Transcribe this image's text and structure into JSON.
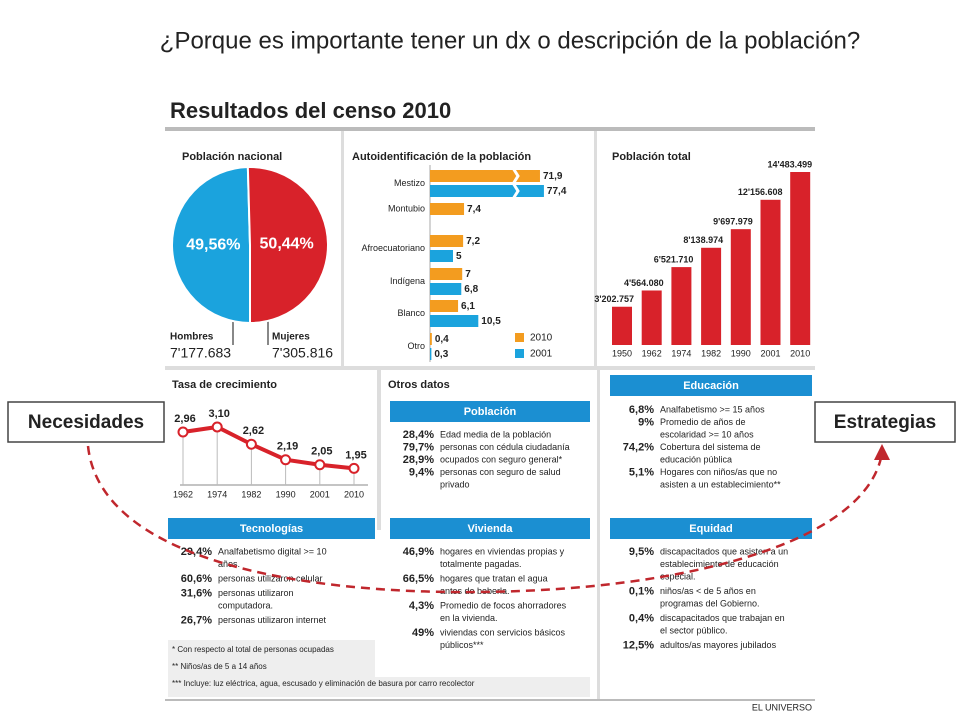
{
  "title": "¿Porque es importante tener un dx o descripción de la población?",
  "left_box": "Necesidades",
  "right_box": "Estrategias",
  "infographic": {
    "heading": "Resultados del censo 2010",
    "otros_datos": "Otros datos",
    "source": "EL UNIVERSO",
    "sections": [
      {
        "title": "Población",
        "items": [
          {
            "value": "28,4%",
            "lines": [
              "Edad media de la población"
            ]
          },
          {
            "value": "79,7%",
            "lines": [
              "personas con cédula ciudadanía"
            ]
          },
          {
            "value": "28,9%",
            "lines": [
              "ocupados con seguro general*"
            ]
          },
          {
            "value": "9,4%",
            "lines": [
              "personas con seguro de salud",
              "privado"
            ]
          }
        ]
      },
      {
        "title": "Educación",
        "items": [
          {
            "value": "6,8%",
            "lines": [
              "Analfabetismo >= 15 años"
            ]
          },
          {
            "value": "9%",
            "lines": [
              "Promedio de años de",
              "escolaridad >= 10 años"
            ]
          },
          {
            "value": "74,2%",
            "lines": [
              "Cobertura del sistema de",
              "educación pública"
            ]
          },
          {
            "value": "5,1%",
            "lines": [
              "Hogares con niños/as que no",
              "asisten a un establecimiento**"
            ]
          }
        ]
      },
      {
        "title": "Tecnologías",
        "items": [
          {
            "value": "29,4%",
            "lines": [
              "Analfabetismo digital >= 10",
              "años."
            ]
          },
          {
            "value": "60,6%",
            "lines": [
              "personas utilizaron celular"
            ]
          },
          {
            "value": "31,6%",
            "lines": [
              "personas utilizaron",
              "computadora."
            ]
          },
          {
            "value": "26,7%",
            "lines": [
              "personas utilizaron internet"
            ]
          }
        ]
      },
      {
        "title": "Vivienda",
        "items": [
          {
            "value": "46,9%",
            "lines": [
              "hogares en viviendas propias y",
              "totalmente pagadas."
            ]
          },
          {
            "value": "66,5%",
            "lines": [
              "hogares que tratan el agua",
              "antes de beberla."
            ]
          },
          {
            "value": "4,3%",
            "lines": [
              "Promedio de focos ahorradores",
              "en la vivienda."
            ]
          },
          {
            "value": "49%",
            "lines": [
              "viviendas con servicios básicos",
              "públicos***"
            ]
          }
        ]
      },
      {
        "title": "Equidad",
        "items": [
          {
            "value": "9,5%",
            "lines": [
              "discapacitados que asisten a un",
              "establecimiento de educación",
              "especial."
            ]
          },
          {
            "value": "0,1%",
            "lines": [
              "niños/as < de 5 años en",
              "programas del Gobierno."
            ]
          },
          {
            "value": "0,4%",
            "lines": [
              "discapacitados que trabajan en",
              "el sector público."
            ]
          },
          {
            "value": "12,5%",
            "lines": [
              "adultos/as mayores jubilados"
            ]
          }
        ]
      }
    ],
    "notes": [
      "* Con respecto al total de personas ocupadas",
      "** Niños/as de 5 a 14 años",
      "*** Incluye: luz eléctrica, agua, escusado y eliminación de basura por carro recolector"
    ]
  },
  "chart_data": [
    {
      "type": "pie",
      "title": "Población nacional",
      "categories": [
        "Hombres",
        "Mujeres"
      ],
      "values": [
        49.56,
        50.44
      ],
      "value_labels": [
        "49,56%",
        "50,44%"
      ],
      "counts": [
        "7'177.683",
        "7'305.816"
      ],
      "colors": [
        "#1ba3dd",
        "#d8222a"
      ]
    },
    {
      "type": "hbar",
      "title": "Autoidentificación de la población",
      "categories": [
        "Mestizo",
        "Montubio",
        "Afroecuatoriano",
        "Indígena",
        "Blanco",
        "Otro"
      ],
      "series": [
        {
          "name": "2010",
          "color": "#f39c1f",
          "values": [
            71.9,
            7.4,
            7.2,
            7,
            6.1,
            0.4
          ],
          "value_labels": [
            "71,9",
            "7,4",
            "7,2",
            "7",
            "6,1",
            "0,4"
          ]
        },
        {
          "name": "2001",
          "color": "#1ba3dd",
          "values": [
            77.4,
            null,
            5,
            6.8,
            10.5,
            0.3
          ],
          "value_labels": [
            "77,4",
            null,
            "5",
            "6,8",
            "10,5",
            "0,3"
          ]
        }
      ]
    },
    {
      "type": "bar",
      "title": "Población total",
      "categories": [
        "1950",
        "1962",
        "1974",
        "1982",
        "1990",
        "2001",
        "2010"
      ],
      "values": [
        3202757,
        4564080,
        6521710,
        8138974,
        9697979,
        12156608,
        14483499
      ],
      "value_labels": [
        "3'202.757",
        "4'564.080",
        "6'521.710",
        "8'138.974",
        "9'697.979",
        "12'156.608",
        "14'483.499"
      ],
      "color": "#d8222a"
    },
    {
      "type": "line",
      "title": "Tasa de crecimiento",
      "categories": [
        "1962",
        "1974",
        "1982",
        "1990",
        "2001",
        "2010"
      ],
      "values": [
        2.96,
        3.1,
        2.62,
        2.19,
        2.05,
        1.95
      ],
      "value_labels": [
        "2,96",
        "3,10",
        "2,62",
        "2,19",
        "2,05",
        "1,95"
      ],
      "color": "#d8222a"
    }
  ]
}
